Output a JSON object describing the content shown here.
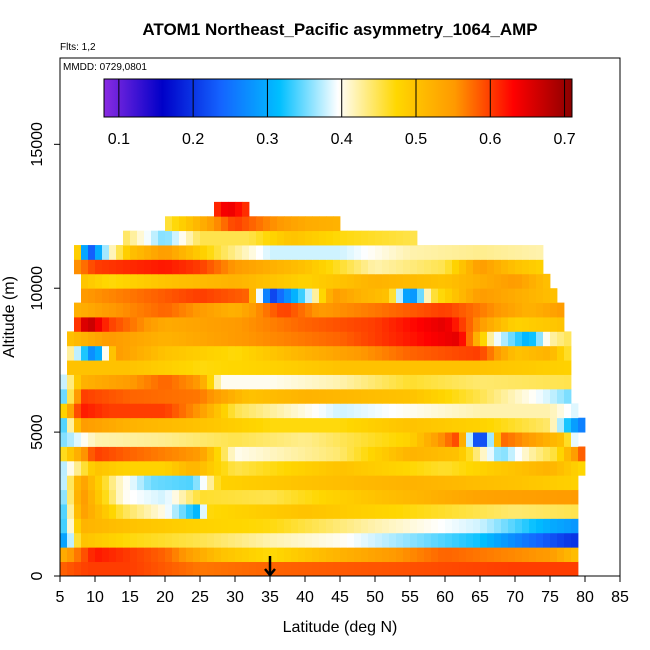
{
  "chart_data": {
    "type": "heatmap",
    "title": "ATOM1 Northeast_Pacific asymmetry_1064_AMP",
    "flights_label": "Flts: 1,2",
    "dates_label": "MMDD: 0729,0801",
    "xlabel": "Latitude (deg N)",
    "ylabel": "Altitude (m)",
    "xlim": [
      5,
      85
    ],
    "ylim": [
      0,
      18000
    ],
    "x_ticks": [
      "5",
      "10",
      "15",
      "20",
      "25",
      "30",
      "35",
      "40",
      "45",
      "50",
      "55",
      "60",
      "65",
      "70",
      "75",
      "80",
      "85"
    ],
    "y_ticks": [
      "0",
      "5000",
      "10000",
      "15000"
    ],
    "colorbar": {
      "min": 0.08,
      "max": 0.71,
      "ticks": [
        "0.1",
        "0.2",
        "0.3",
        "0.4",
        "0.5",
        "0.6",
        "0.7"
      ],
      "colors": [
        "#8a2be2",
        "#0000c8",
        "#1464ff",
        "#00bfff",
        "#ffffff",
        "#ffd700",
        "#ff9900",
        "#ff0000",
        "#8b0000"
      ]
    },
    "marker": {
      "latitude": 35,
      "description": "arrow"
    },
    "layers": [
      {
        "alt": 250,
        "x0": 5,
        "x1": 79,
        "stops": [
          [
            5,
            0.58
          ],
          [
            9,
            0.6
          ],
          [
            15,
            0.6
          ],
          [
            25,
            0.57
          ],
          [
            35,
            0.58
          ],
          [
            55,
            0.59
          ],
          [
            70,
            0.6
          ],
          [
            79,
            0.6
          ]
        ]
      },
      {
        "alt": 750,
        "x0": 5,
        "x1": 79,
        "stops": [
          [
            5,
            0.52
          ],
          [
            10,
            0.62
          ],
          [
            20,
            0.58
          ],
          [
            28,
            0.5
          ],
          [
            35,
            0.47
          ],
          [
            45,
            0.52
          ],
          [
            60,
            0.58
          ],
          [
            75,
            0.55
          ],
          [
            79,
            0.5
          ]
        ]
      },
      {
        "alt": 1250,
        "x0": 5,
        "x1": 79,
        "stops": [
          [
            5,
            0.25
          ],
          [
            8,
            0.5
          ],
          [
            15,
            0.47
          ],
          [
            25,
            0.45
          ],
          [
            35,
            0.42
          ],
          [
            45,
            0.4
          ],
          [
            55,
            0.36
          ],
          [
            65,
            0.32
          ],
          [
            72,
            0.25
          ],
          [
            78,
            0.2
          ]
        ]
      },
      {
        "alt": 1750,
        "x0": 5,
        "x1": 79,
        "stops": [
          [
            5,
            0.3
          ],
          [
            8,
            0.52
          ],
          [
            15,
            0.5
          ],
          [
            25,
            0.48
          ],
          [
            35,
            0.47
          ],
          [
            50,
            0.42
          ],
          [
            65,
            0.38
          ],
          [
            75,
            0.3
          ],
          [
            79,
            0.28
          ]
        ]
      },
      {
        "alt": 2250,
        "x0": 5,
        "x1": 79,
        "stops": [
          [
            5,
            0.3
          ],
          [
            8,
            0.55
          ],
          [
            14,
            0.45
          ],
          [
            20,
            0.4
          ],
          [
            25,
            0.3
          ],
          [
            26,
            0.47
          ],
          [
            40,
            0.5
          ],
          [
            55,
            0.47
          ],
          [
            70,
            0.44
          ],
          [
            79,
            0.45
          ]
        ]
      },
      {
        "alt": 2750,
        "x0": 5,
        "x1": 79,
        "stops": [
          [
            5,
            0.32
          ],
          [
            8,
            0.56
          ],
          [
            14,
            0.4
          ],
          [
            20,
            0.38
          ],
          [
            25,
            0.46
          ],
          [
            35,
            0.45
          ],
          [
            50,
            0.5
          ],
          [
            65,
            0.54
          ],
          [
            79,
            0.55
          ]
        ]
      },
      {
        "alt": 3250,
        "x0": 5,
        "x1": 79,
        "stops": [
          [
            5,
            0.34
          ],
          [
            8,
            0.55
          ],
          [
            13,
            0.42
          ],
          [
            18,
            0.35
          ],
          [
            24,
            0.34
          ],
          [
            28,
            0.48
          ],
          [
            40,
            0.5
          ],
          [
            55,
            0.52
          ],
          [
            70,
            0.5
          ],
          [
            79,
            0.48
          ]
        ]
      },
      {
        "alt": 3750,
        "x0": 5,
        "x1": 80,
        "stops": [
          [
            5,
            0.36
          ],
          [
            10,
            0.5
          ],
          [
            14,
            0.48
          ],
          [
            20,
            0.48
          ],
          [
            24,
            0.52
          ],
          [
            30,
            0.45
          ],
          [
            45,
            0.5
          ],
          [
            60,
            0.46
          ],
          [
            75,
            0.52
          ],
          [
            80,
            0.47
          ]
        ]
      },
      {
        "alt": 4250,
        "x0": 5,
        "x1": 80,
        "stops": [
          [
            5,
            0.45
          ],
          [
            10,
            0.6
          ],
          [
            15,
            0.58
          ],
          [
            25,
            0.55
          ],
          [
            30,
            0.4
          ],
          [
            45,
            0.44
          ],
          [
            55,
            0.52
          ],
          [
            62,
            0.5
          ],
          [
            68,
            0.35
          ],
          [
            72,
            0.42
          ],
          [
            76,
            0.46
          ],
          [
            80,
            0.6
          ]
        ]
      },
      {
        "alt": 4750,
        "x0": 5,
        "x1": 79,
        "stops": [
          [
            5,
            0.35
          ],
          [
            10,
            0.42
          ],
          [
            20,
            0.43
          ],
          [
            30,
            0.45
          ],
          [
            40,
            0.43
          ],
          [
            55,
            0.48
          ],
          [
            62,
            0.6
          ],
          [
            65,
            0.15
          ],
          [
            68,
            0.58
          ],
          [
            72,
            0.55
          ],
          [
            77,
            0.5
          ],
          [
            79,
            0.35
          ]
        ]
      },
      {
        "alt": 5250,
        "x0": 5,
        "x1": 80,
        "stops": [
          [
            5,
            0.3
          ],
          [
            8,
            0.55
          ],
          [
            15,
            0.52
          ],
          [
            25,
            0.5
          ],
          [
            35,
            0.47
          ],
          [
            45,
            0.47
          ],
          [
            55,
            0.5
          ],
          [
            65,
            0.48
          ],
          [
            75,
            0.44
          ],
          [
            78,
            0.3
          ],
          [
            80,
            0.25
          ]
        ]
      },
      {
        "alt": 5750,
        "x0": 5,
        "x1": 79,
        "stops": [
          [
            5,
            0.45
          ],
          [
            8,
            0.62
          ],
          [
            12,
            0.6
          ],
          [
            20,
            0.6
          ],
          [
            25,
            0.55
          ],
          [
            30,
            0.45
          ],
          [
            45,
            0.38
          ],
          [
            55,
            0.4
          ],
          [
            65,
            0.42
          ],
          [
            75,
            0.42
          ],
          [
            79,
            0.38
          ]
        ]
      },
      {
        "alt": 6250,
        "x0": 5,
        "x1": 78,
        "stops": [
          [
            5,
            0.3
          ],
          [
            8,
            0.6
          ],
          [
            15,
            0.58
          ],
          [
            25,
            0.57
          ],
          [
            32,
            0.5
          ],
          [
            40,
            0.52
          ],
          [
            55,
            0.5
          ],
          [
            65,
            0.45
          ],
          [
            75,
            0.38
          ],
          [
            78,
            0.35
          ]
        ]
      },
      {
        "alt": 6750,
        "x0": 5,
        "x1": 78,
        "stops": [
          [
            5,
            0.35
          ],
          [
            8,
            0.52
          ],
          [
            15,
            0.55
          ],
          [
            20,
            0.58
          ],
          [
            25,
            0.55
          ],
          [
            28,
            0.4
          ],
          [
            35,
            0.4
          ],
          [
            45,
            0.42
          ],
          [
            55,
            0.46
          ],
          [
            65,
            0.44
          ],
          [
            78,
            0.45
          ]
        ]
      },
      {
        "alt": 7250,
        "x0": 6,
        "x1": 78,
        "stops": [
          [
            6,
            0.5
          ],
          [
            15,
            0.5
          ],
          [
            25,
            0.47
          ],
          [
            35,
            0.48
          ],
          [
            45,
            0.5
          ],
          [
            55,
            0.5
          ],
          [
            65,
            0.5
          ],
          [
            78,
            0.48
          ]
        ]
      },
      {
        "alt": 7750,
        "x0": 6,
        "x1": 78,
        "stops": [
          [
            6,
            0.45
          ],
          [
            10,
            0.25
          ],
          [
            13,
            0.55
          ],
          [
            20,
            0.5
          ],
          [
            30,
            0.47
          ],
          [
            40,
            0.52
          ],
          [
            55,
            0.58
          ],
          [
            65,
            0.6
          ],
          [
            70,
            0.5
          ],
          [
            75,
            0.52
          ],
          [
            78,
            0.45
          ]
        ]
      },
      {
        "alt": 8250,
        "x0": 6,
        "x1": 78,
        "stops": [
          [
            6,
            0.5
          ],
          [
            12,
            0.55
          ],
          [
            20,
            0.52
          ],
          [
            30,
            0.55
          ],
          [
            45,
            0.58
          ],
          [
            55,
            0.62
          ],
          [
            62,
            0.65
          ],
          [
            67,
            0.4
          ],
          [
            72,
            0.3
          ],
          [
            75,
            0.42
          ],
          [
            78,
            0.45
          ]
        ]
      },
      {
        "alt": 8750,
        "x0": 7,
        "x1": 77,
        "stops": [
          [
            7,
            0.58
          ],
          [
            9,
            0.68
          ],
          [
            12,
            0.6
          ],
          [
            20,
            0.53
          ],
          [
            30,
            0.55
          ],
          [
            40,
            0.58
          ],
          [
            50,
            0.6
          ],
          [
            60,
            0.65
          ],
          [
            65,
            0.55
          ],
          [
            70,
            0.48
          ],
          [
            77,
            0.5
          ]
        ]
      },
      {
        "alt": 9250,
        "x0": 7,
        "x1": 77,
        "stops": [
          [
            7,
            0.52
          ],
          [
            12,
            0.55
          ],
          [
            20,
            0.58
          ],
          [
            30,
            0.52
          ],
          [
            37,
            0.6
          ],
          [
            42,
            0.55
          ],
          [
            50,
            0.57
          ],
          [
            60,
            0.6
          ],
          [
            68,
            0.55
          ],
          [
            72,
            0.52
          ],
          [
            77,
            0.55
          ]
        ]
      },
      {
        "alt": 9750,
        "x0": 8,
        "x1": 76,
        "stops": [
          [
            8,
            0.55
          ],
          [
            15,
            0.57
          ],
          [
            25,
            0.6
          ],
          [
            32,
            0.58
          ],
          [
            35,
            0.2
          ],
          [
            40,
            0.35
          ],
          [
            44,
            0.55
          ],
          [
            48,
            0.52
          ],
          [
            52,
            0.5
          ],
          [
            55,
            0.25
          ],
          [
            58,
            0.45
          ],
          [
            65,
            0.55
          ],
          [
            72,
            0.52
          ],
          [
            76,
            0.5
          ]
        ]
      },
      {
        "alt": 10250,
        "x0": 8,
        "x1": 75,
        "stops": [
          [
            8,
            0.5
          ],
          [
            12,
            0.47
          ],
          [
            20,
            0.5
          ],
          [
            30,
            0.52
          ],
          [
            40,
            0.48
          ],
          [
            50,
            0.52
          ],
          [
            60,
            0.5
          ],
          [
            70,
            0.55
          ],
          [
            75,
            0.5
          ]
        ]
      },
      {
        "alt": 10750,
        "x0": 7,
        "x1": 74,
        "stops": [
          [
            7,
            0.55
          ],
          [
            10,
            0.6
          ],
          [
            20,
            0.62
          ],
          [
            25,
            0.6
          ],
          [
            30,
            0.55
          ],
          [
            40,
            0.5
          ],
          [
            50,
            0.42
          ],
          [
            60,
            0.45
          ],
          [
            65,
            0.55
          ],
          [
            70,
            0.5
          ],
          [
            74,
            0.48
          ]
        ]
      },
      {
        "alt": 11250,
        "x0": 7,
        "x1": 74,
        "stops": [
          [
            7,
            0.58
          ],
          [
            9,
            0.2
          ],
          [
            12,
            0.4
          ],
          [
            15,
            0.5
          ],
          [
            20,
            0.55
          ],
          [
            28,
            0.45
          ],
          [
            35,
            0.38
          ],
          [
            45,
            0.38
          ],
          [
            55,
            0.42
          ],
          [
            65,
            0.43
          ],
          [
            74,
            0.42
          ]
        ]
      },
      {
        "alt": 11750,
        "x0": 14,
        "x1": 56,
        "stops": [
          [
            14,
            0.45
          ],
          [
            20,
            0.35
          ],
          [
            25,
            0.45
          ],
          [
            32,
            0.45
          ],
          [
            38,
            0.5
          ],
          [
            45,
            0.47
          ],
          [
            56,
            0.45
          ]
        ]
      },
      {
        "alt": 12250,
        "x0": 20,
        "x1": 45,
        "stops": [
          [
            20,
            0.45
          ],
          [
            25,
            0.52
          ],
          [
            30,
            0.6
          ],
          [
            35,
            0.56
          ],
          [
            40,
            0.53
          ],
          [
            45,
            0.52
          ]
        ]
      },
      {
        "alt": 12750,
        "x0": 27,
        "x1": 32,
        "stops": [
          [
            27,
            0.6
          ],
          [
            29,
            0.65
          ],
          [
            32,
            0.6
          ]
        ]
      }
    ]
  }
}
